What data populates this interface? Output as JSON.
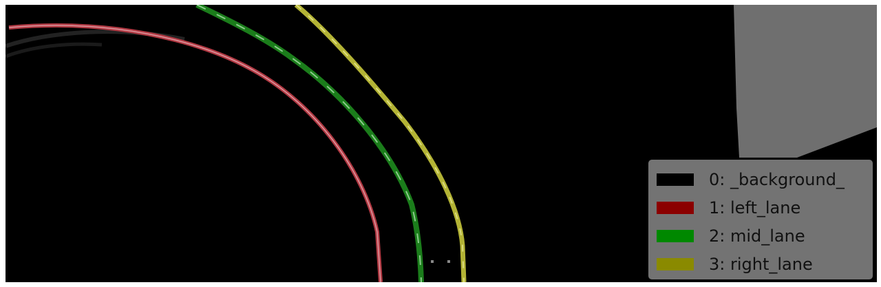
{
  "legend": {
    "items": [
      {
        "label": "0: _background_",
        "color": "#000000"
      },
      {
        "label": "1: left_lane",
        "color": "#8b0000"
      },
      {
        "label": "2: mid_lane",
        "color": "#008800"
      },
      {
        "label": "3: right_lane",
        "color": "#8a8a00"
      }
    ]
  },
  "colors": {
    "background": "#000000",
    "left_lane": "#c8404a",
    "mid_lane": "#1f8a1f",
    "right_lane": "#bcbc3a",
    "sky_patch": "#8a8a8a"
  }
}
